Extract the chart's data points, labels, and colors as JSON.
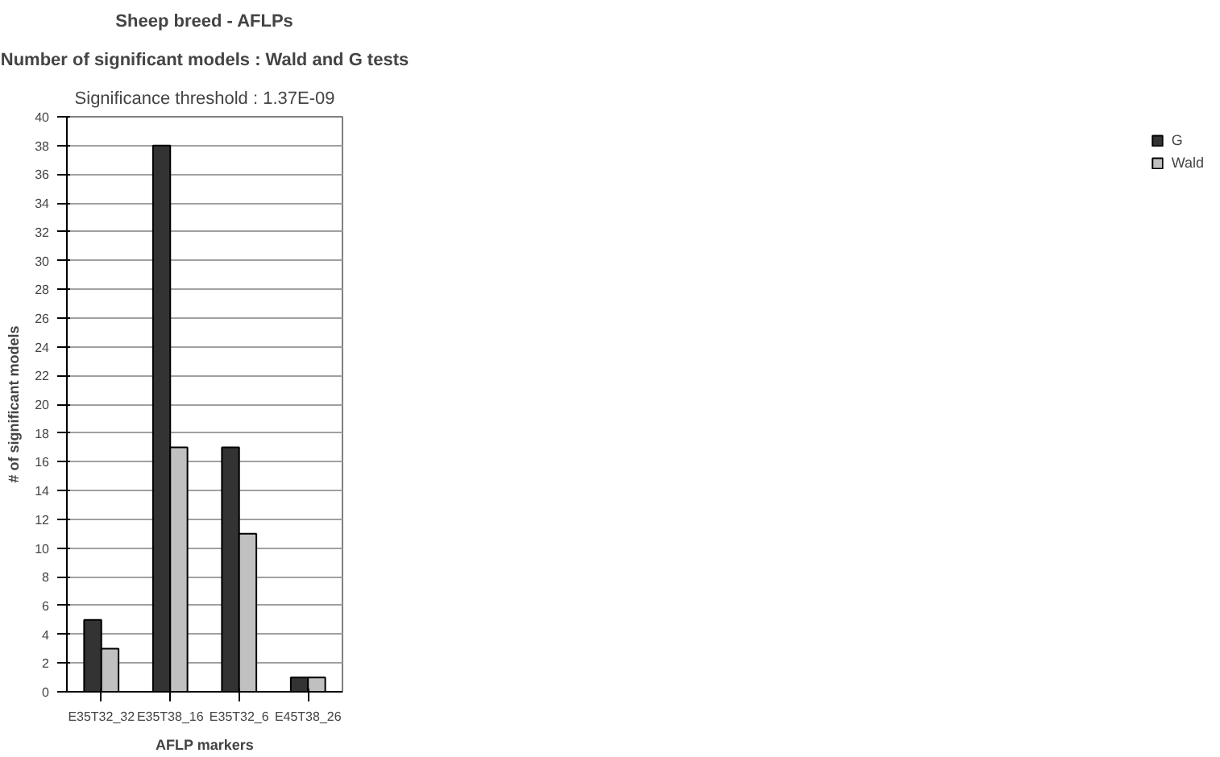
{
  "chart_data": {
    "type": "bar",
    "title": "Sheep breed - AFLPs",
    "subtitle": "Number of significant models : Wald and G tests",
    "annotations": [
      "Significance threshold : 1.37E-09"
    ],
    "xlabel": "AFLP markers",
    "ylabel": "# of significant models",
    "categories": [
      "E35T32_32",
      "E35T38_16",
      "E35T32_6",
      "E45T38_26"
    ],
    "series": [
      {
        "name": "G",
        "color": "#333333",
        "values": [
          5,
          38,
          17,
          1
        ]
      },
      {
        "name": "Wald",
        "color": "#c0c0c0",
        "values": [
          3,
          17,
          11,
          1
        ]
      }
    ],
    "ylim": [
      0,
      40
    ],
    "yticks": [
      0,
      2,
      4,
      6,
      8,
      10,
      12,
      14,
      16,
      18,
      20,
      22,
      24,
      26,
      28,
      30,
      32,
      34,
      36,
      38,
      40
    ],
    "grid": "y",
    "legend": "right"
  }
}
